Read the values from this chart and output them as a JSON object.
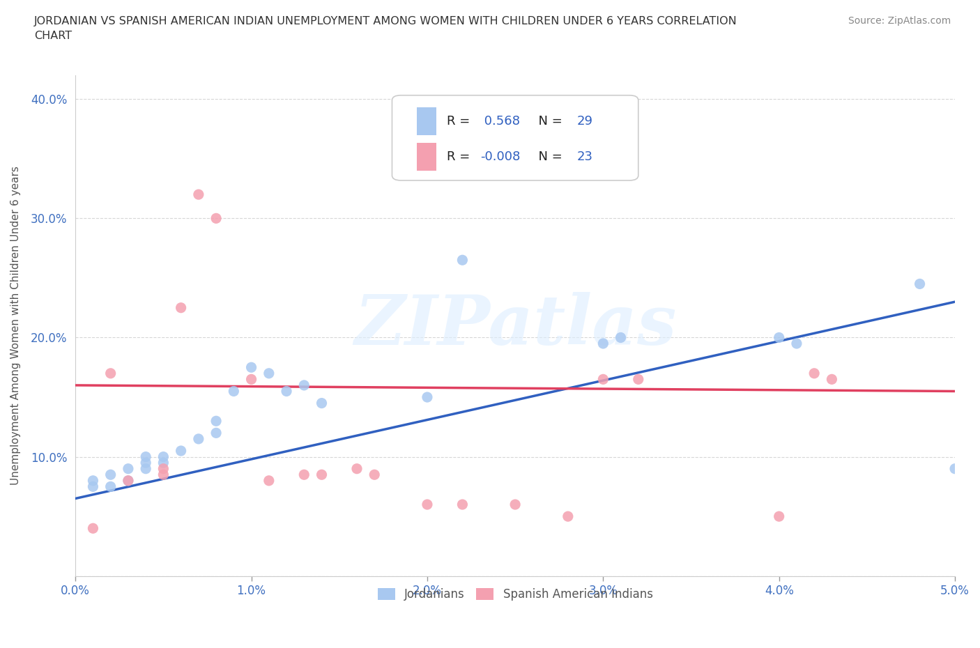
{
  "title": "JORDANIAN VS SPANISH AMERICAN INDIAN UNEMPLOYMENT AMONG WOMEN WITH CHILDREN UNDER 6 YEARS CORRELATION\nCHART",
  "source": "Source: ZipAtlas.com",
  "ylabel": "Unemployment Among Women with Children Under 6 years",
  "xlim": [
    0,
    0.05
  ],
  "ylim": [
    0,
    0.42
  ],
  "xticks": [
    0.0,
    0.01,
    0.02,
    0.03,
    0.04,
    0.05
  ],
  "yticks": [
    0.0,
    0.1,
    0.2,
    0.3,
    0.4
  ],
  "xticklabels": [
    "0.0%",
    "1.0%",
    "2.0%",
    "3.0%",
    "4.0%",
    "5.0%"
  ],
  "yticklabels": [
    "",
    "10.0%",
    "20.0%",
    "30.0%",
    "40.0%"
  ],
  "r_jordanian": 0.568,
  "n_jordanian": 29,
  "r_spanish": -0.008,
  "n_spanish": 23,
  "color_jordanian": "#a8c8f0",
  "color_spanish": "#f4a0b0",
  "line_color_jordanian": "#3060c0",
  "line_color_spanish": "#e04060",
  "watermark_text": "ZIPatlas",
  "background_color": "#ffffff",
  "legend_label_jordanian": "Jordanians",
  "legend_label_spanish": "Spanish American Indians",
  "jordanian_x": [
    0.001,
    0.001,
    0.002,
    0.002,
    0.003,
    0.003,
    0.004,
    0.004,
    0.004,
    0.005,
    0.005,
    0.006,
    0.007,
    0.008,
    0.008,
    0.009,
    0.01,
    0.011,
    0.012,
    0.013,
    0.014,
    0.02,
    0.022,
    0.03,
    0.031,
    0.04,
    0.041,
    0.048,
    0.05
  ],
  "jordanian_y": [
    0.075,
    0.08,
    0.075,
    0.085,
    0.08,
    0.09,
    0.09,
    0.095,
    0.1,
    0.095,
    0.1,
    0.105,
    0.115,
    0.12,
    0.13,
    0.155,
    0.175,
    0.17,
    0.155,
    0.16,
    0.145,
    0.15,
    0.265,
    0.195,
    0.2,
    0.2,
    0.195,
    0.245,
    0.09
  ],
  "spanish_x": [
    0.001,
    0.002,
    0.003,
    0.005,
    0.005,
    0.006,
    0.007,
    0.008,
    0.01,
    0.011,
    0.013,
    0.014,
    0.016,
    0.017,
    0.02,
    0.022,
    0.025,
    0.028,
    0.03,
    0.032,
    0.04,
    0.042,
    0.043
  ],
  "spanish_y": [
    0.04,
    0.17,
    0.08,
    0.085,
    0.09,
    0.225,
    0.32,
    0.3,
    0.165,
    0.08,
    0.085,
    0.085,
    0.09,
    0.085,
    0.06,
    0.06,
    0.06,
    0.05,
    0.165,
    0.165,
    0.05,
    0.17,
    0.165
  ],
  "line_j_x0": 0.0,
  "line_j_y0": 0.065,
  "line_j_x1": 0.05,
  "line_j_y1": 0.23,
  "line_s_x0": 0.0,
  "line_s_y0": 0.16,
  "line_s_x1": 0.05,
  "line_s_y1": 0.155
}
